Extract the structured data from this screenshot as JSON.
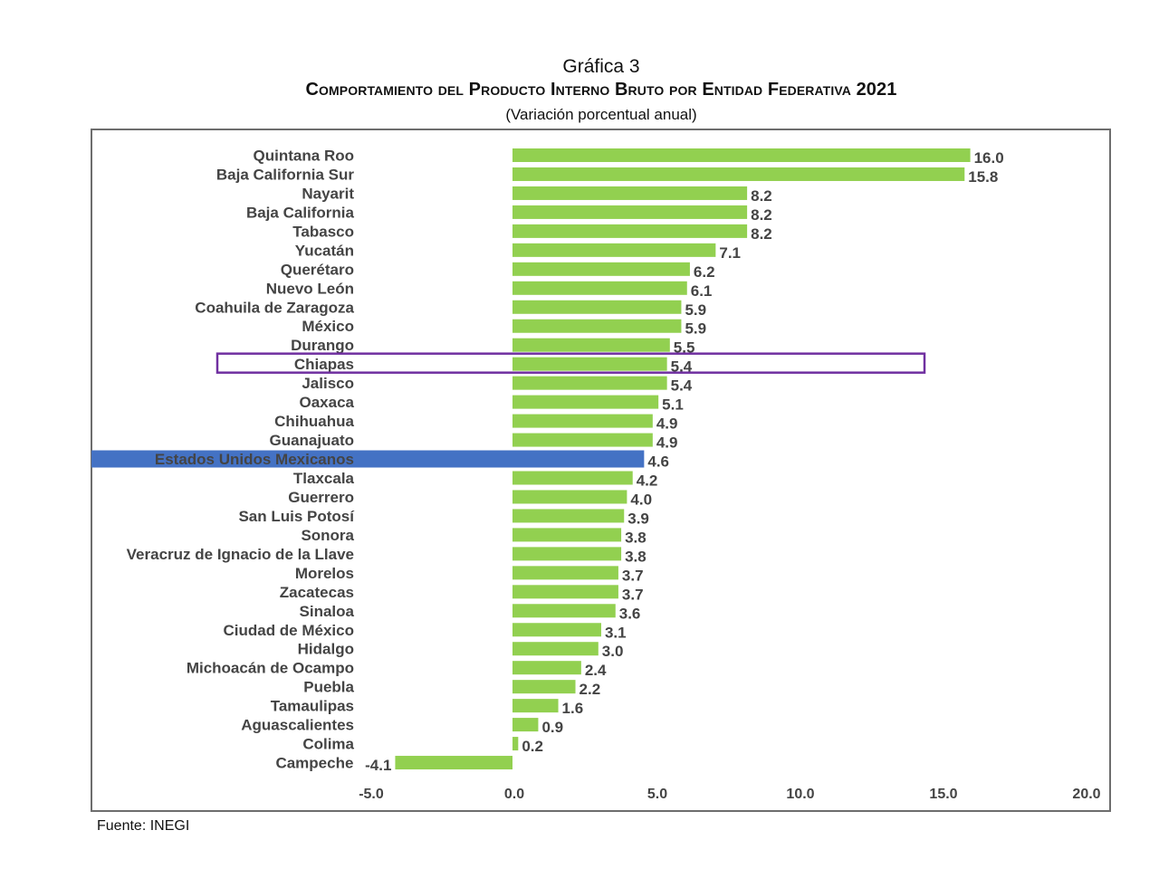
{
  "header": {
    "label": "Gráfica 3",
    "title": "Comportamiento del Producto Interno Bruto por Entidad Federativa 2021",
    "subtitle": "(Variación porcentual anual)"
  },
  "source": "Fuente: INEGI",
  "colors": {
    "bar": "#92d050",
    "national_band": "#4472c4",
    "national_text": "#4472c4",
    "highlight_box": "#7030a0"
  },
  "chart_data": {
    "type": "bar",
    "orientation": "horizontal",
    "title": "Comportamiento del Producto Interno Bruto por Entidad Federativa 2021",
    "subtitle": "(Variación porcentual anual)",
    "categories": [
      "Quintana Roo",
      "Baja California Sur",
      "Nayarit",
      "Baja California",
      "Tabasco",
      "Yucatán",
      "Querétaro",
      "Nuevo León",
      "Coahuila de Zaragoza",
      "México",
      "Durango",
      "Chiapas",
      "Jalisco",
      "Oaxaca",
      "Chihuahua",
      "Guanajuato",
      "Estados Unidos Mexicanos",
      "Tlaxcala",
      "Guerrero",
      "San Luis Potosí",
      "Sonora",
      "Veracruz de Ignacio de la Llave",
      "Morelos",
      "Zacatecas",
      "Sinaloa",
      "Ciudad de México",
      "Hidalgo",
      "Michoacán de Ocampo",
      "Puebla",
      "Tamaulipas",
      "Aguascalientes",
      "Colima",
      "Campeche"
    ],
    "values": [
      16.0,
      15.8,
      8.2,
      8.2,
      8.2,
      7.1,
      6.2,
      6.1,
      5.9,
      5.9,
      5.5,
      5.4,
      5.4,
      5.1,
      4.9,
      4.9,
      4.6,
      4.2,
      4.0,
      3.9,
      3.8,
      3.8,
      3.7,
      3.7,
      3.6,
      3.1,
      3.0,
      2.4,
      2.2,
      1.6,
      0.9,
      0.2,
      -4.1
    ],
    "value_labels": [
      "16.0",
      "15.8",
      "8.2",
      "8.2",
      "8.2",
      "7.1",
      "6.2",
      "6.1",
      "5.9",
      "5.9",
      "5.5",
      "5.4",
      "5.4",
      "5.1",
      "4.9",
      "4.9",
      "4.6",
      "4.2",
      "4.0",
      "3.9",
      "3.8",
      "3.8",
      "3.7",
      "3.7",
      "3.6",
      "3.1",
      "3.0",
      "2.4",
      "2.2",
      "1.6",
      "0.9",
      "0.2",
      "-4.1"
    ],
    "national_category": "Estados Unidos Mexicanos",
    "highlighted_category": "Chiapas",
    "xlim": [
      -5,
      20
    ],
    "xticks": [
      -5,
      0,
      5,
      10,
      15,
      20
    ],
    "xtick_labels": [
      "-5.0",
      "0.0",
      "5.0",
      "10.0",
      "15.0",
      "20.0"
    ],
    "grid": false,
    "legend": "none"
  }
}
